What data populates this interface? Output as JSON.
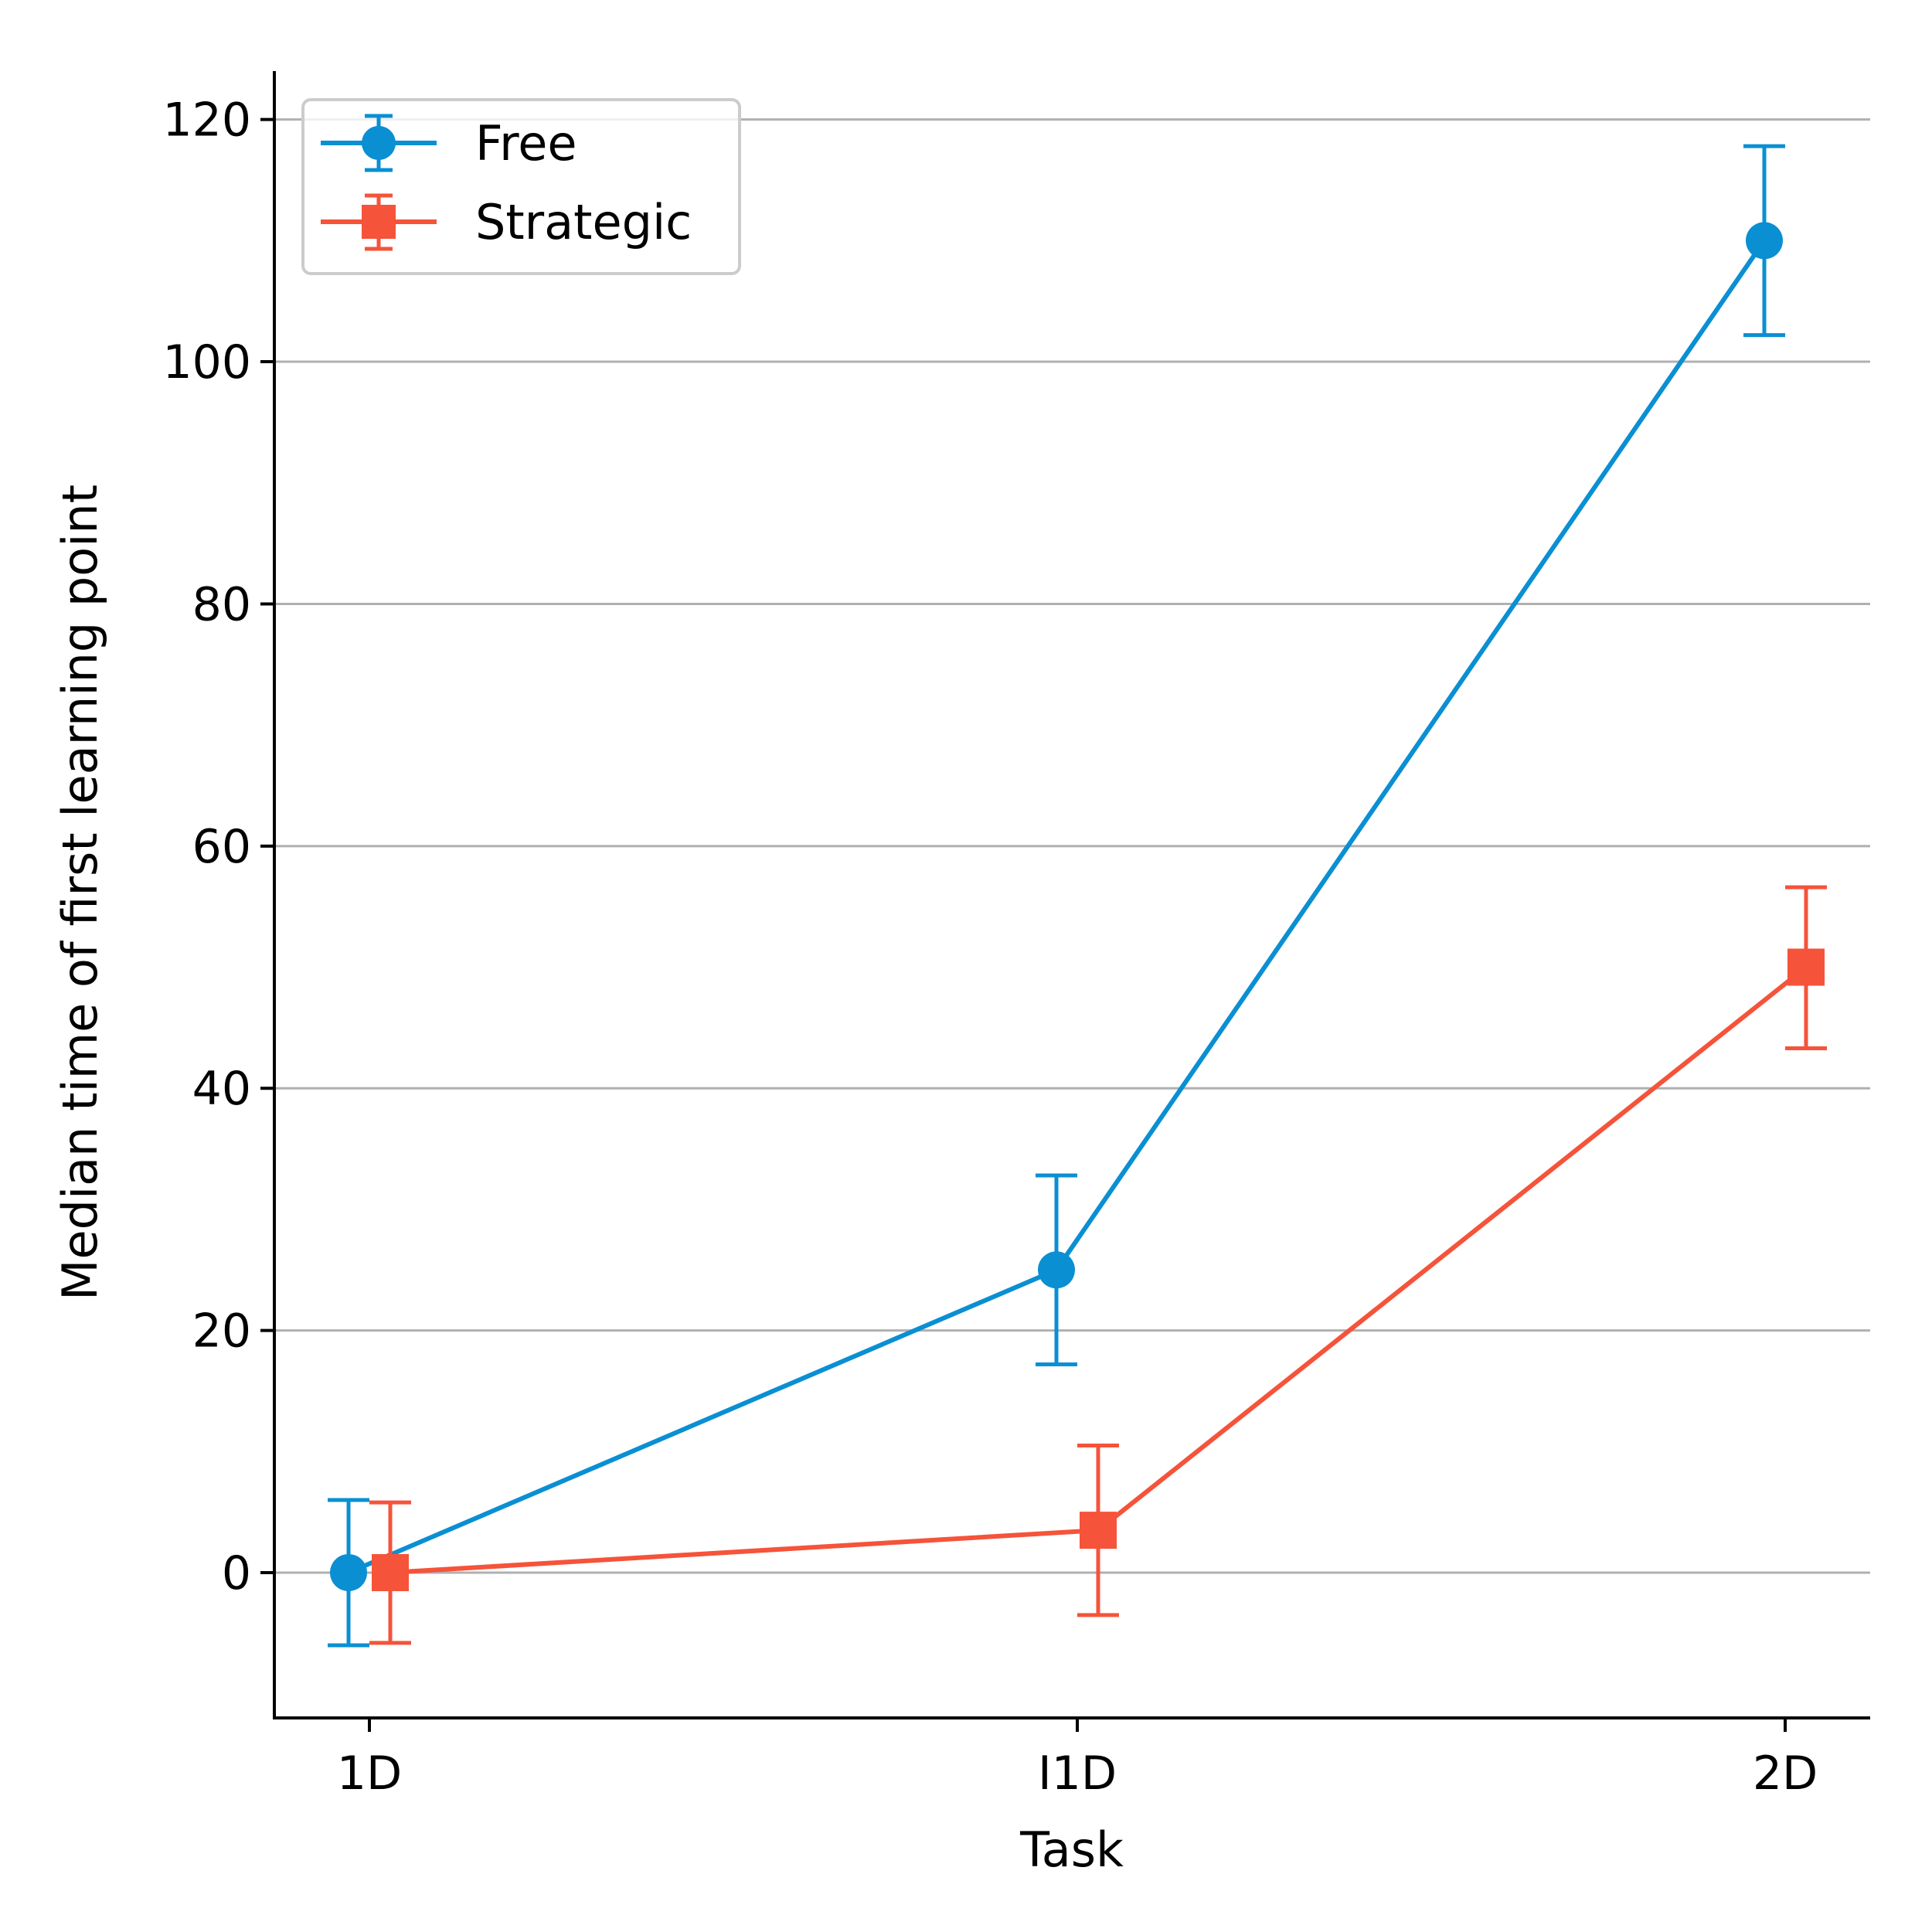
{
  "chart_data": {
    "type": "line",
    "title": "",
    "xlabel": "Task",
    "ylabel": "Median time of first learning point",
    "categories": [
      "1D",
      "I1D",
      "2D"
    ],
    "ylim": [
      -12,
      124
    ],
    "yticks": [
      0,
      20,
      40,
      60,
      80,
      100,
      120
    ],
    "ytick_labels": [
      "0",
      "20",
      "40",
      "60",
      "80",
      "100",
      "120"
    ],
    "grid": "horizontal",
    "legend_position": "top-left",
    "series": [
      {
        "name": "Free",
        "marker": "circle",
        "color": "#0a8fd3",
        "values": [
          0,
          25,
          110
        ],
        "err_low": [
          -6,
          17.2,
          102.2
        ],
        "err_high": [
          6,
          32.8,
          117.8
        ]
      },
      {
        "name": "Strategic",
        "marker": "square",
        "color": "#f5533a",
        "values": [
          0,
          3.5,
          50
        ],
        "err_low": [
          -5.8,
          -3.5,
          43.3
        ],
        "err_high": [
          5.8,
          10.5,
          56.6
        ]
      }
    ]
  }
}
